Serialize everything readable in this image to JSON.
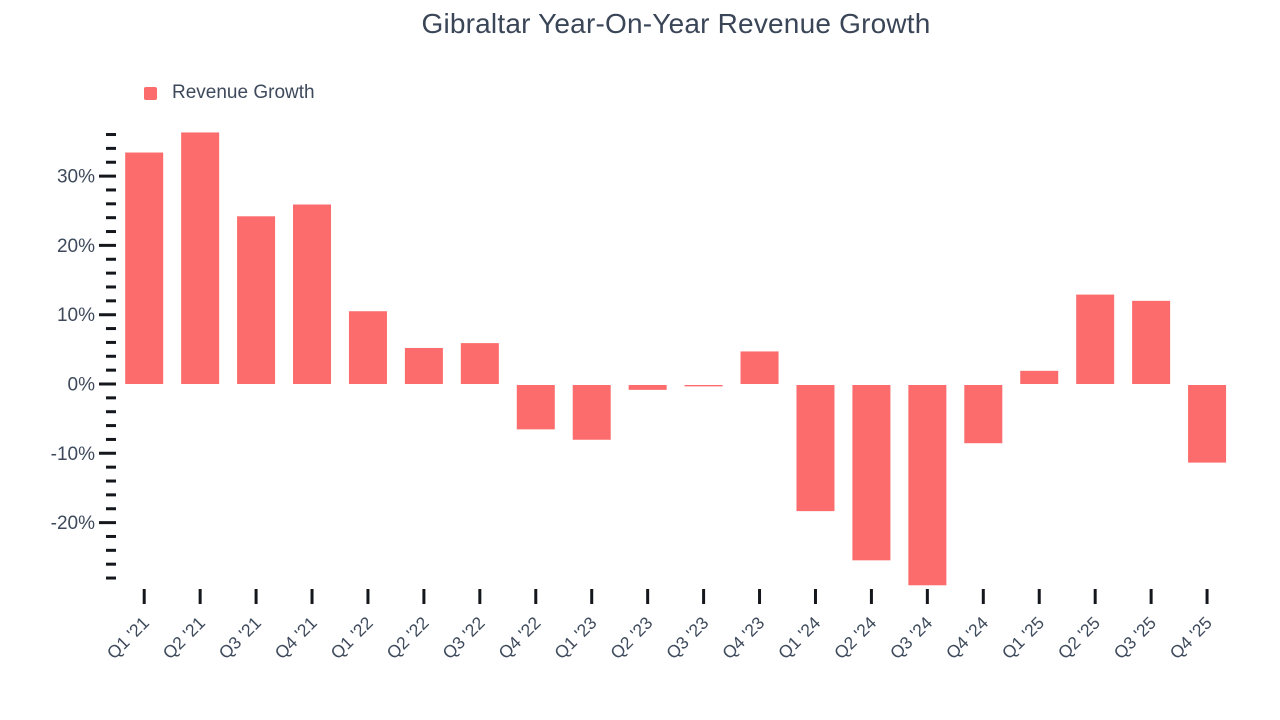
{
  "chart_data": {
    "type": "bar",
    "title": "Gibraltar Year-On-Year Revenue Growth",
    "xlabel": "",
    "ylabel": "",
    "grid": false,
    "legend_position": "top-left",
    "categories": [
      "Q1 '21",
      "Q2 '21",
      "Q3 '21",
      "Q4 '21",
      "Q1 '22",
      "Q2 '22",
      "Q3 '22",
      "Q4 '22",
      "Q1 '23",
      "Q2 '23",
      "Q3 '23",
      "Q4 '23",
      "Q1 '24",
      "Q2 '24",
      "Q3 '24",
      "Q4 '24",
      "Q1 '25",
      "Q2 '25",
      "Q3 '25",
      "Q4 '25"
    ],
    "series": [
      {
        "name": "Revenue Growth",
        "color": "#fc6c6c",
        "values": [
          33.4,
          36.3,
          24.2,
          25.9,
          10.5,
          5.2,
          5.9,
          -6.4,
          -7.9,
          -0.7,
          -0.2,
          4.7,
          -18.2,
          -25.3,
          -28.9,
          -8.4,
          1.9,
          12.9,
          12.0,
          -11.2
        ]
      }
    ],
    "y_axis": {
      "unit": "%",
      "labeled_ticks": [
        30,
        20,
        10,
        0,
        -10,
        -20
      ],
      "minor_tick_step": 2,
      "tick_min": -28,
      "tick_max": 36,
      "ylim": [
        -30,
        37
      ]
    }
  },
  "colors": {
    "bar": "#fc6c6c",
    "title_text": "#3a4657",
    "axis_text": "#3e4a5c",
    "tick_mark": "#14181d"
  }
}
